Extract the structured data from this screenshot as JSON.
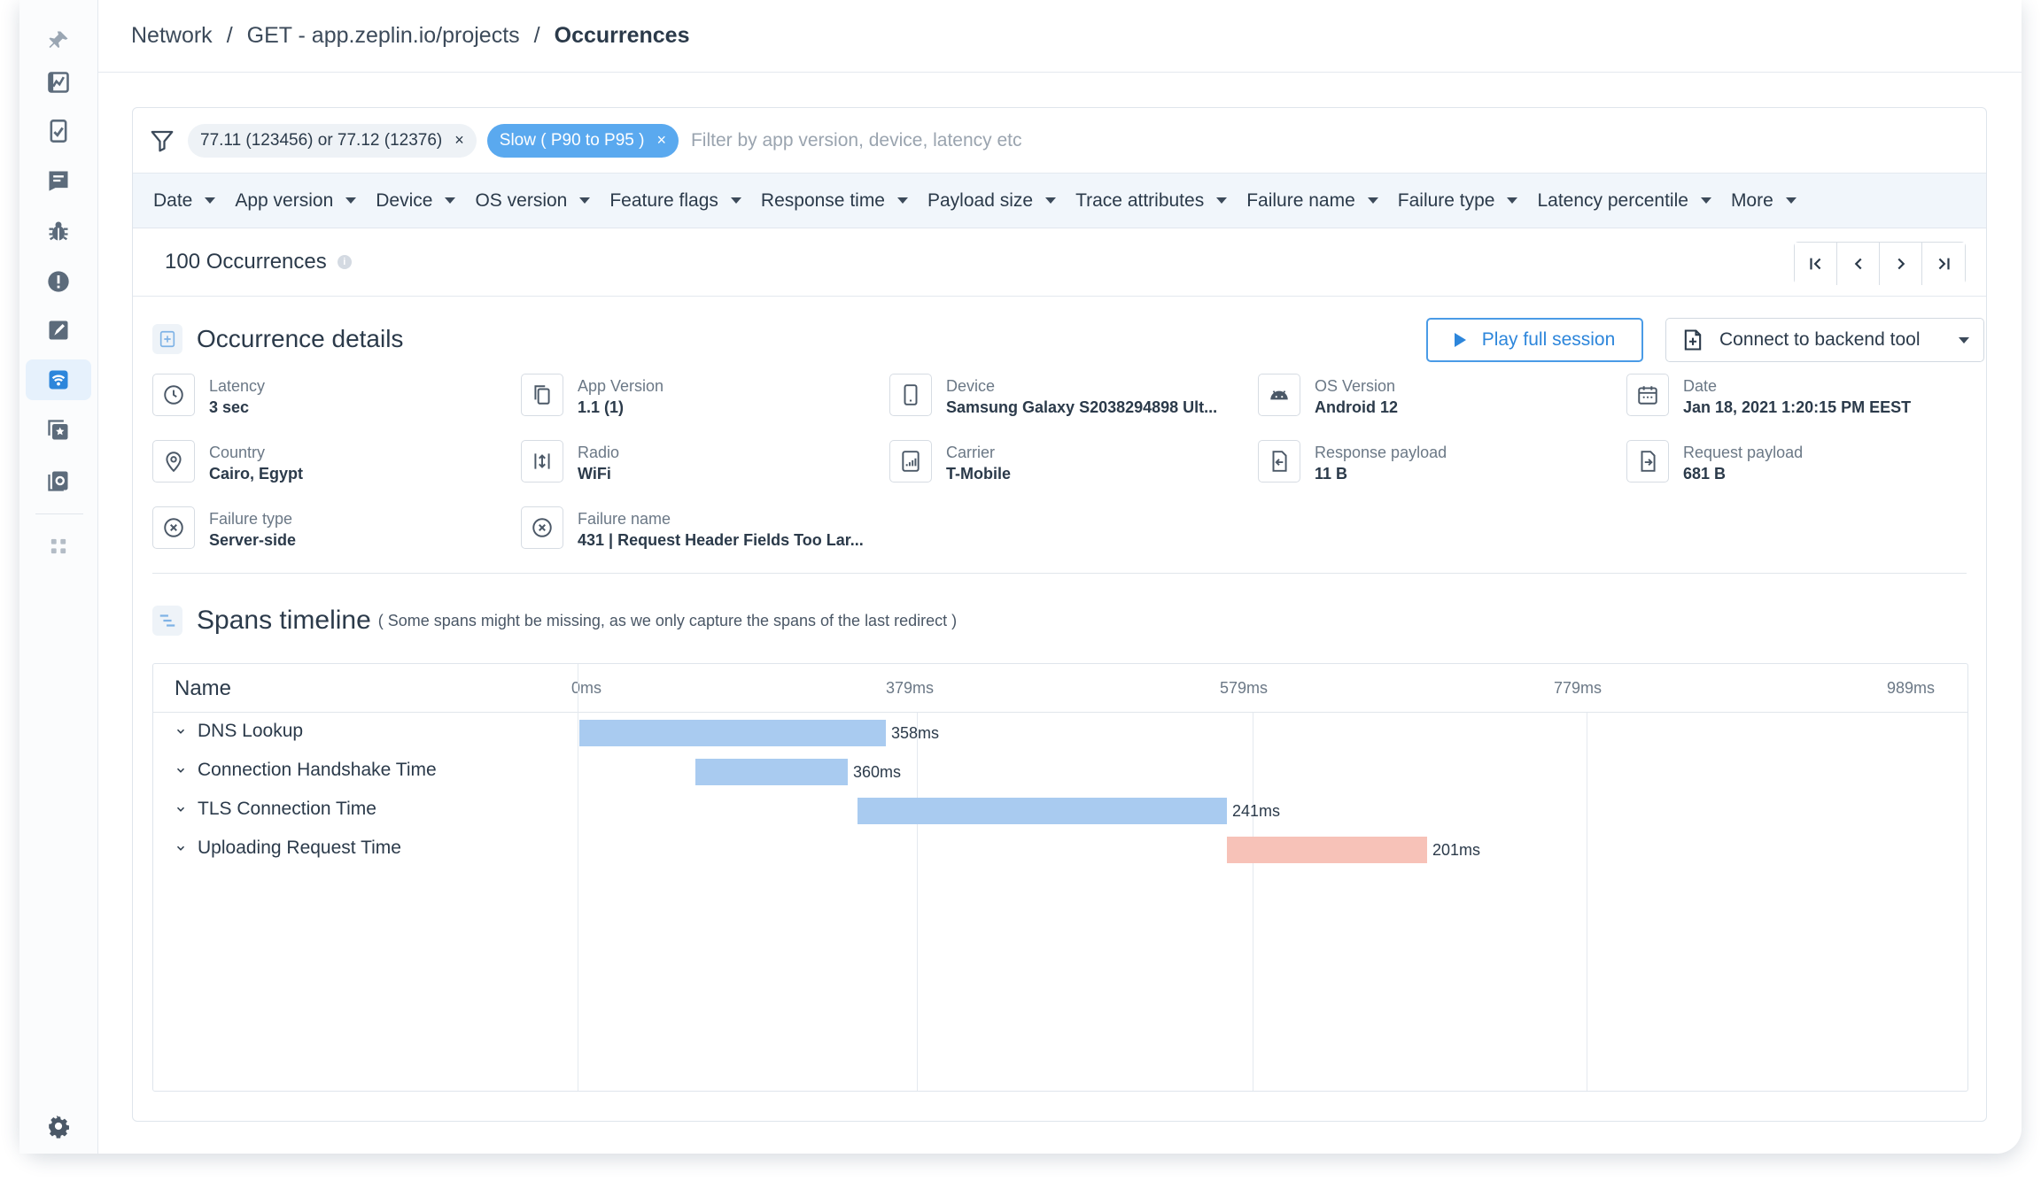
{
  "sidebar": {
    "items": [
      {
        "icon": "pin-icon"
      },
      {
        "icon": "dashboard-icon"
      },
      {
        "icon": "apm-icon"
      },
      {
        "icon": "reports-icon"
      },
      {
        "icon": "bug-icon"
      },
      {
        "icon": "crash-icon"
      },
      {
        "icon": "release-icon"
      },
      {
        "icon": "network-icon",
        "active": true
      },
      {
        "icon": "featured-icon"
      },
      {
        "icon": "sessions-icon"
      },
      {
        "icon": "more-apps-icon"
      }
    ],
    "settings_icon": "gear-icon"
  },
  "breadcrumb": {
    "items": [
      "Network",
      "GET - app.zeplin.io/projects",
      "Occurrences"
    ],
    "separator": "/"
  },
  "filters": {
    "chips": [
      {
        "label": "77.11 (123456) or 77.12 (12376)",
        "style": "grey"
      },
      {
        "label": "Slow ( P90 to P95 )",
        "style": "blue"
      }
    ],
    "remove_glyph": "×",
    "placeholder": "Filter by app version, device, latency etc",
    "dimensions": [
      "Date",
      "App version",
      "Device",
      "OS version",
      "Feature flags",
      "Response time",
      "Payload size",
      "Trace attributes",
      "Failure name",
      "Failure type",
      "Latency percentile",
      "More"
    ]
  },
  "occurrences": {
    "count_label": "100 Occurrences",
    "info": "i"
  },
  "details": {
    "title": "Occurrence details",
    "play_button": "Play full session",
    "connect_button": "Connect to backend tool",
    "fields": [
      {
        "label": "Latency",
        "value": "3 sec",
        "icon": "clock-icon"
      },
      {
        "label": "App Version",
        "value": "1.1 (1)",
        "icon": "copy-icon"
      },
      {
        "label": "Device",
        "value": "Samsung Galaxy S2038294898 Ult...",
        "icon": "phone-icon"
      },
      {
        "label": "OS Version",
        "value": "Android 12",
        "icon": "android-icon"
      },
      {
        "label": "Date",
        "value": "Jan 18, 2021 1:20:15 PM EEST",
        "icon": "calendar-icon"
      },
      {
        "label": "Country",
        "value": "Cairo, Egypt",
        "icon": "location-icon"
      },
      {
        "label": "Radio",
        "value": "WiFi",
        "icon": "radio-icon"
      },
      {
        "label": "Carrier",
        "value": "T-Mobile",
        "icon": "carrier-icon"
      },
      {
        "label": "Response payload",
        "value": "11 B",
        "icon": "response-icon"
      },
      {
        "label": "Request payload",
        "value": "681 B",
        "icon": "request-icon"
      },
      {
        "label": "Failure type",
        "value": "Server-side",
        "icon": "x-circle-icon"
      },
      {
        "label": "Failure name",
        "value": "431 | Request Header Fields Too Lar...",
        "icon": "x-circle-icon"
      }
    ]
  },
  "spans": {
    "title": "Spans timeline",
    "note": "( Some spans might be missing, as we only capture the spans of the last redirect )",
    "name_header": "Name",
    "ticks": [
      "0ms",
      "379ms",
      "579ms",
      "779ms",
      "989ms"
    ],
    "rows": [
      {
        "name": "DNS Lookup",
        "duration_label": "358ms",
        "color": "#a9cbf0"
      },
      {
        "name": "Connection Handshake Time",
        "duration_label": "360ms",
        "color": "#a9cbf0"
      },
      {
        "name": "TLS Connection Time",
        "duration_label": "241ms",
        "color": "#a9cbf0"
      },
      {
        "name": "Uploading Request Time",
        "duration_label": "201ms",
        "color": "#f7c2b8"
      }
    ]
  },
  "colors": {
    "accent": "#2d86db",
    "chip_blue": "#5aa9ef",
    "active_nav": "#2d86db"
  }
}
